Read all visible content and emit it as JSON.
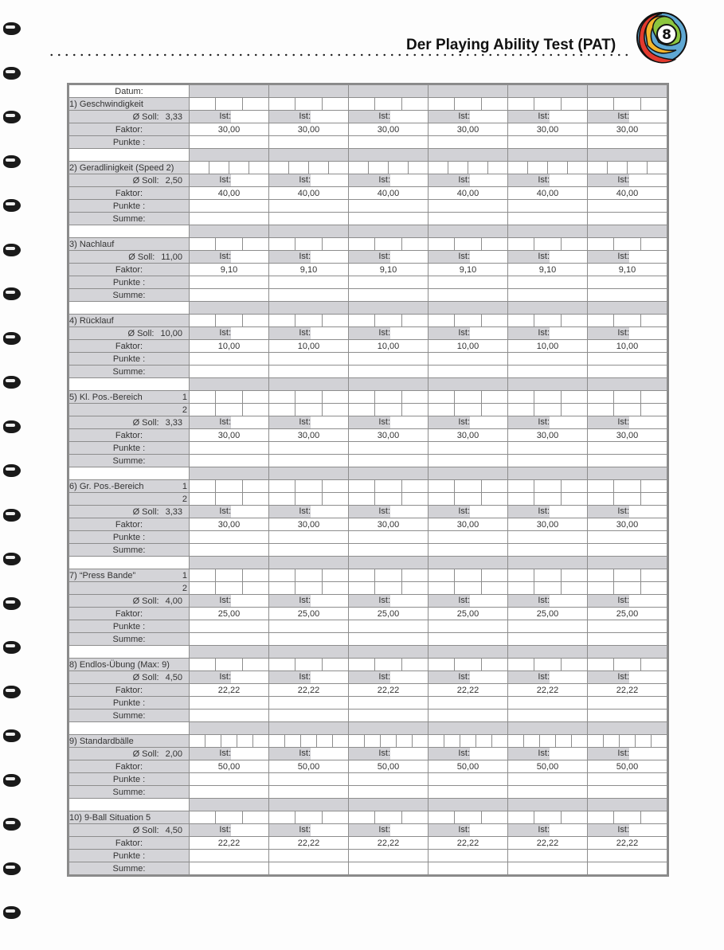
{
  "header": {
    "title": "Der Playing Ability Test (PAT)",
    "logo_text": "8"
  },
  "colors": {
    "label_bg": "#d4d4d8",
    "grid": "#8d8d8d",
    "logo": [
      "#e23a2e",
      "#f3b62c",
      "#8cc63f",
      "#5fa8d3"
    ]
  },
  "labels": {
    "datum": "Datum:",
    "soll": "Ø  Soll:",
    "ist": "Ist:",
    "faktor": "Faktor:",
    "punkte": "Punkte :",
    "summe": "Summe:"
  },
  "column_count": 6,
  "sections": [
    {
      "title": "1) Geschwindigkeit",
      "boxes": 3,
      "box_rows": [
        ""
      ],
      "soll": "3,33",
      "faktor": "30,00",
      "summe": false
    },
    {
      "title": "2) Geradlinigkeit (Speed 2)",
      "boxes": 4,
      "box_rows": [
        ""
      ],
      "soll": "2,50",
      "faktor": "40,00",
      "summe": true
    },
    {
      "title": "3) Nachlauf",
      "boxes": 3,
      "box_rows": [
        ""
      ],
      "soll": "11,00",
      "faktor": "9,10",
      "summe": true
    },
    {
      "title": "4) Rücklauf",
      "boxes": 3,
      "box_rows": [
        ""
      ],
      "soll": "10,00",
      "faktor": "10,00",
      "summe": true
    },
    {
      "title": "5) Kl. Pos.-Bereich",
      "boxes": 3,
      "box_rows": [
        "1",
        "2"
      ],
      "soll": "3,33",
      "faktor": "30,00",
      "summe": true
    },
    {
      "title": "6) Gr. Pos.-Bereich",
      "boxes": 3,
      "box_rows": [
        "1",
        "2"
      ],
      "soll": "3,33",
      "faktor": "30,00",
      "summe": true
    },
    {
      "title": "7) “Press Bande”",
      "boxes": 3,
      "box_rows": [
        "1",
        "2"
      ],
      "soll": "4,00",
      "faktor": "25,00",
      "summe": true
    },
    {
      "title": "8) Endlos-Übung (Max: 9)",
      "boxes": 3,
      "box_rows": [
        ""
      ],
      "soll": "4,50",
      "faktor": "22,22",
      "summe": true
    },
    {
      "title": "9) Standardbälle",
      "boxes": 5,
      "box_rows": [
        ""
      ],
      "soll": "2,00",
      "faktor": "50,00",
      "summe": true
    },
    {
      "title": "10) 9-Ball Situation 5",
      "boxes": 3,
      "box_rows": [
        ""
      ],
      "soll": "4,50",
      "faktor": "22,22",
      "summe": true
    }
  ]
}
